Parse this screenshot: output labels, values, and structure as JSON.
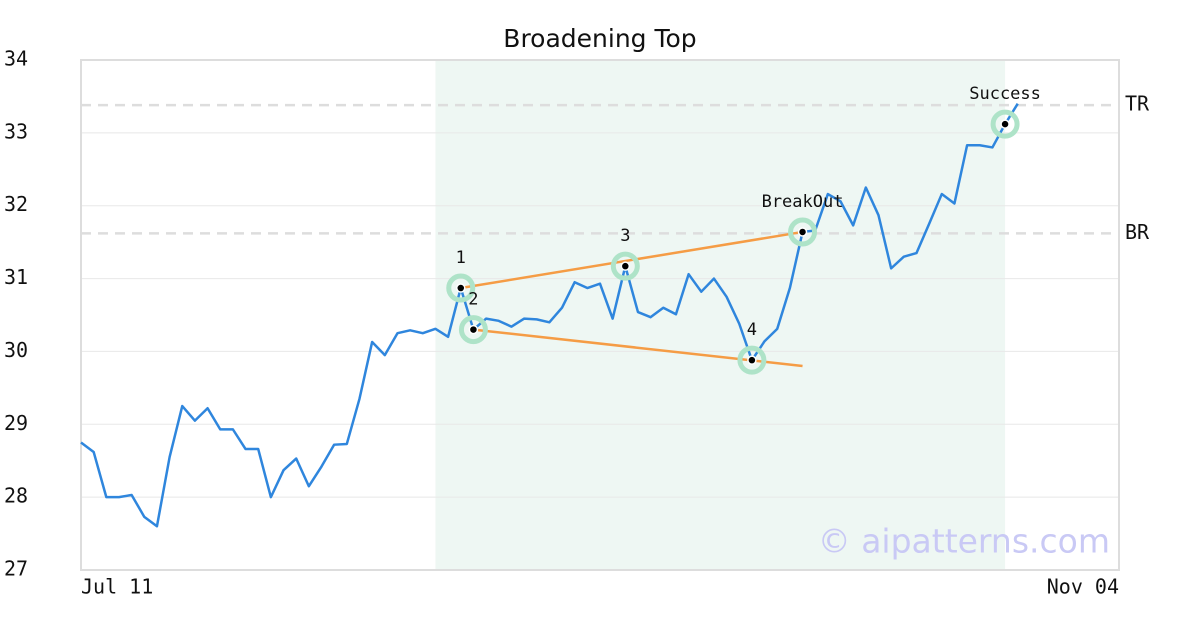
{
  "chart_data": {
    "type": "line",
    "title": "Broadening Top",
    "categories": [
      "Jul 11",
      null,
      null,
      null,
      null,
      null,
      null,
      null,
      null,
      null,
      null,
      null,
      null,
      null,
      null,
      null,
      null,
      null,
      null,
      null,
      null,
      null,
      null,
      null,
      null,
      null,
      null,
      null,
      null,
      null,
      null,
      null,
      null,
      null,
      null,
      null,
      null,
      null,
      null,
      null,
      null,
      null,
      null,
      null,
      null,
      null,
      null,
      null,
      null,
      null,
      null,
      null,
      null,
      null,
      null,
      null,
      null,
      null,
      null,
      null,
      null,
      null,
      null,
      null,
      null,
      null,
      null,
      null,
      null,
      null,
      null,
      null,
      null,
      null,
      null,
      null,
      null,
      null,
      null,
      null,
      null,
      null,
      "Nov 04"
    ],
    "values": [
      28.75,
      28.62,
      28.0,
      28.0,
      28.03,
      27.73,
      27.6,
      28.55,
      29.25,
      29.05,
      29.22,
      28.93,
      28.93,
      28.66,
      28.66,
      28.0,
      28.37,
      28.53,
      28.15,
      28.42,
      28.72,
      28.73,
      29.35,
      30.13,
      29.95,
      30.25,
      30.29,
      30.25,
      30.31,
      30.2,
      30.87,
      30.3,
      30.45,
      30.42,
      30.34,
      30.45,
      30.44,
      30.4,
      30.6,
      30.95,
      30.87,
      30.93,
      30.45,
      31.17,
      30.54,
      30.47,
      30.6,
      30.51,
      31.06,
      30.82,
      31.0,
      30.75,
      30.38,
      29.88,
      30.14,
      30.31,
      30.87,
      31.64,
      31.66,
      32.16,
      32.06,
      31.73,
      32.25,
      31.87,
      31.14,
      31.3,
      31.35,
      31.75,
      32.16,
      32.03,
      32.83,
      32.83,
      32.8,
      33.12,
      33.4,
      null,
      null,
      null,
      null,
      null,
      null,
      null,
      null
    ],
    "color": "#2f86dd",
    "ylim": [
      27,
      34
    ],
    "yticks": [
      27,
      28,
      29,
      30,
      31,
      32,
      33,
      34
    ],
    "grid": true,
    "highlight_range": [
      28,
      73
    ],
    "highlight_color": "#eef7f3",
    "reference_lines": [
      {
        "label": "TR",
        "value": 33.38
      },
      {
        "label": "BR",
        "value": 31.62
      }
    ],
    "trend_lines": [
      {
        "x": [
          30,
          57
        ],
        "y": [
          30.87,
          31.64
        ]
      },
      {
        "x": [
          31,
          57
        ],
        "y": [
          30.3,
          29.8
        ]
      }
    ],
    "trend_color": "#f59c45",
    "annotations": [
      {
        "label": "1",
        "x": 30,
        "y": 30.87
      },
      {
        "label": "2",
        "x": 31,
        "y": 30.3
      },
      {
        "label": "3",
        "x": 43,
        "y": 31.17
      },
      {
        "label": "4",
        "x": 53,
        "y": 29.88
      },
      {
        "label": "BreakOut",
        "x": 57,
        "y": 31.64
      },
      {
        "label": "Success",
        "x": 73,
        "y": 33.12
      }
    ],
    "watermark": "© aipatterns.com"
  }
}
